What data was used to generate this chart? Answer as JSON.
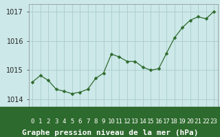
{
  "x": [
    0,
    1,
    2,
    3,
    4,
    5,
    6,
    7,
    8,
    9,
    10,
    11,
    12,
    13,
    14,
    15,
    16,
    17,
    18,
    19,
    20,
    21,
    22,
    23
  ],
  "y": [
    1014.6,
    1014.82,
    1014.65,
    1014.35,
    1014.28,
    1014.2,
    1014.25,
    1014.35,
    1014.72,
    1014.9,
    1015.55,
    1015.45,
    1015.3,
    1015.3,
    1015.1,
    1015.0,
    1015.05,
    1015.58,
    1016.1,
    1016.45,
    1016.7,
    1016.82,
    1016.75,
    1017.0
  ],
  "line_color": "#2d6a2d",
  "marker": "D",
  "marker_size": 2.5,
  "bg_color": "#cce8e8",
  "plot_bg_color": "#cce8e8",
  "grid_color": "#aacccc",
  "bottom_bar_color": "#2d6a2d",
  "bottom_text_color": "#ffffff",
  "title": "Graphe pression niveau de la mer (hPa)",
  "ylim": [
    1013.75,
    1017.25
  ],
  "xlim": [
    -0.5,
    23.5
  ],
  "yticks": [
    1014,
    1015,
    1016,
    1017
  ],
  "ytick_labels": [
    "1014",
    "1015",
    "1016",
    "1017"
  ],
  "xtick_labels": [
    "0",
    "1",
    "2",
    "3",
    "4",
    "5",
    "6",
    "7",
    "8",
    "9",
    "10",
    "11",
    "12",
    "13",
    "14",
    "15",
    "16",
    "17",
    "18",
    "19",
    "20",
    "21",
    "22",
    "23"
  ],
  "title_fontsize": 8,
  "tick_fontsize": 6.5,
  "ytick_fontsize": 7
}
